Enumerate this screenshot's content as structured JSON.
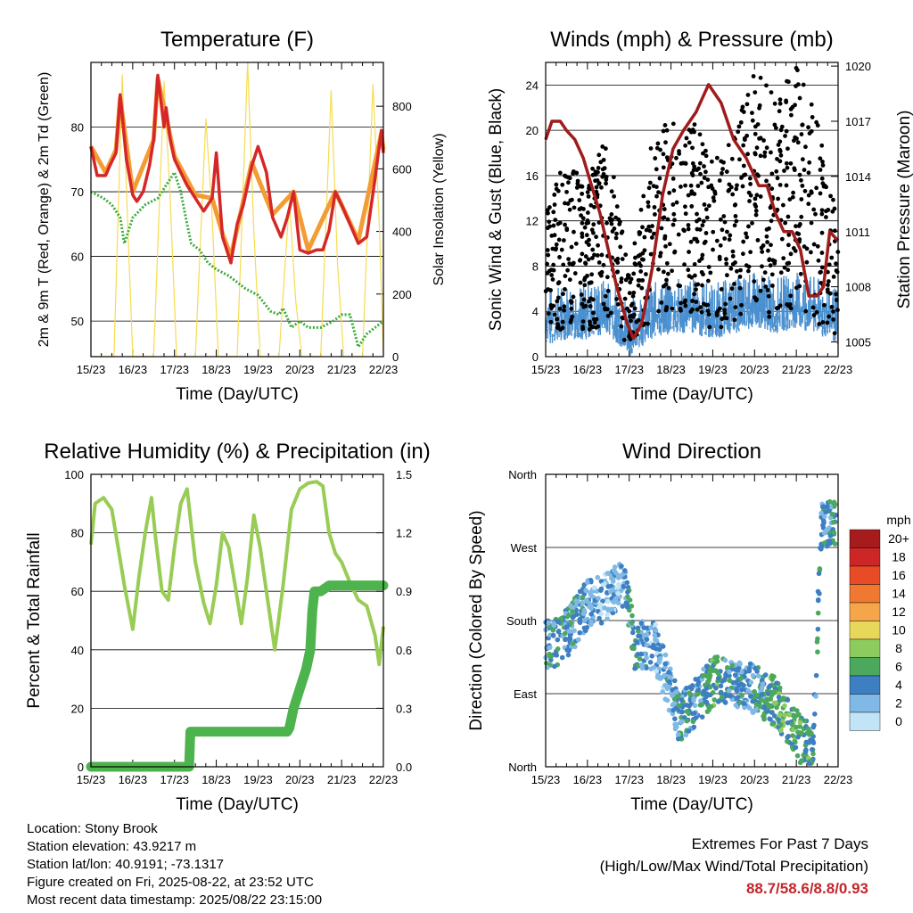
{
  "chart_data": [
    {
      "type": "line",
      "title": "Temperature (F)",
      "xlabel": "Time (Day/UTC)",
      "ylabel": "2m & 9m T (Red, Orange) & 2m Td (Green)",
      "y2label": "Solar Insolation (Yellow)",
      "x_ticks": [
        "15/23",
        "16/23",
        "17/23",
        "18/23",
        "19/23",
        "20/23",
        "21/23",
        "22/23"
      ],
      "xlim": [
        0,
        7
      ],
      "ylim": [
        44.5,
        90
      ],
      "y_ticks": [
        50,
        60,
        70,
        80
      ],
      "y2lim": [
        0,
        940
      ],
      "y2_ticks": [
        0,
        200,
        400,
        600,
        800
      ],
      "colors": {
        "t2m": "#d62728",
        "t9m": "#f39c34",
        "td": "#3cab3c",
        "solar": "#f7dc50"
      },
      "series": [
        {
          "name": "2m T",
          "axis": "left",
          "x": [
            0,
            0.15,
            0.35,
            0.45,
            0.6,
            0.7,
            0.85,
            1.0,
            1.1,
            1.25,
            1.4,
            1.5,
            1.6,
            1.75,
            1.8,
            1.9,
            2.0,
            2.15,
            2.3,
            2.5,
            2.7,
            2.9,
            3.0,
            3.15,
            3.35,
            3.5,
            3.65,
            3.85,
            4.0,
            4.2,
            4.35,
            4.55,
            4.7,
            4.85,
            5.0,
            5.2,
            5.4,
            5.55,
            5.7,
            5.85,
            6.0,
            6.2,
            6.4,
            6.6,
            6.8,
            6.95,
            7.0
          ],
          "y": [
            77,
            72.5,
            72.5,
            74,
            76,
            85,
            75,
            69.5,
            68.5,
            70,
            74,
            78,
            88,
            80,
            83,
            78,
            75,
            73,
            71,
            69,
            67,
            69,
            76,
            63,
            59,
            65,
            68,
            74,
            77,
            73,
            66,
            63,
            66,
            70,
            61,
            60.5,
            61,
            61,
            64,
            70,
            68,
            65,
            62,
            63,
            72,
            79.5,
            76
          ]
        },
        {
          "name": "9m T",
          "axis": "left",
          "x": [
            0,
            0.35,
            0.6,
            0.7,
            1.0,
            1.5,
            1.6,
            2.0,
            2.5,
            2.9,
            3.15,
            3.35,
            3.85,
            4.35,
            4.85,
            5.2,
            5.85,
            6.4,
            6.95,
            7.0
          ],
          "y": [
            77,
            73,
            76.5,
            84.5,
            70,
            78,
            87.5,
            75.5,
            69.5,
            69,
            63.5,
            60,
            74.5,
            66.5,
            70,
            61,
            70,
            62.5,
            79,
            76.5
          ]
        },
        {
          "name": "2m Td",
          "axis": "left",
          "x": [
            0,
            0.3,
            0.5,
            0.7,
            0.8,
            1.0,
            1.3,
            1.6,
            1.8,
            2.0,
            2.15,
            2.3,
            2.4,
            2.6,
            2.8,
            3.0,
            3.3,
            3.5,
            3.7,
            4.0,
            4.3,
            4.5,
            4.6,
            4.8,
            5.0,
            5.2,
            5.5,
            5.8,
            6.0,
            6.2,
            6.4,
            6.6,
            6.8,
            7.0
          ],
          "y": [
            70,
            69,
            68,
            66,
            62,
            66,
            68,
            69,
            71,
            73,
            70,
            65,
            62,
            61,
            59,
            58,
            57,
            56,
            55,
            54,
            51.5,
            51,
            52,
            49,
            50,
            49,
            49,
            50,
            51,
            51,
            46,
            48,
            49,
            50
          ]
        },
        {
          "name": "Solar Insolation",
          "axis": "right",
          "x": [
            0,
            0.55,
            0.75,
            0.9,
            1.0,
            1.5,
            1.75,
            1.9,
            2.05,
            2.5,
            2.75,
            2.9,
            3.05,
            3.5,
            3.75,
            3.9,
            4.05,
            4.5,
            4.75,
            4.9,
            5.05,
            5.5,
            5.75,
            5.9,
            6.05,
            6.5,
            6.75,
            6.9,
            7.0
          ],
          "y": [
            0,
            0,
            900,
            350,
            0,
            0,
            880,
            500,
            0,
            0,
            760,
            450,
            0,
            0,
            940,
            400,
            0,
            0,
            500,
            180,
            0,
            0,
            850,
            300,
            0,
            0,
            870,
            430,
            0
          ]
        }
      ]
    },
    {
      "type": "scatter",
      "title": "Winds (mph) & Pressure (mb)",
      "xlabel": "Time (Day/UTC)",
      "ylabel": "Sonic Wind & Gust (Blue, Black)",
      "y2label": "Station Pressure (Maroon)",
      "x_ticks": [
        "15/23",
        "16/23",
        "17/23",
        "18/23",
        "19/23",
        "20/23",
        "21/23",
        "22/23"
      ],
      "xlim": [
        0,
        7
      ],
      "ylim": [
        0,
        26
      ],
      "y_ticks": [
        0,
        4,
        8,
        12,
        16,
        20,
        24
      ],
      "y2lim": [
        1004.2,
        1020.2
      ],
      "y2_ticks": [
        1005,
        1008,
        1011,
        1014,
        1017,
        1020
      ],
      "colors": {
        "wind": "#4a90d0",
        "gust": "#000000",
        "pressure": "#9e1c1c"
      },
      "series": [
        {
          "name": "Sonic Wind",
          "axis": "left",
          "x": [
            0,
            0.5,
            1.0,
            1.5,
            2.0,
            2.5,
            3.0,
            3.5,
            4.0,
            4.5,
            5.0,
            5.5,
            6.0,
            6.5,
            7.0
          ],
          "y": [
            3.5,
            4,
            4,
            4.5,
            2.5,
            4,
            4.5,
            4.5,
            4,
            4.5,
            5,
            4.5,
            5,
            4.5,
            3.5
          ]
        },
        {
          "name": "Gust",
          "axis": "left",
          "x": [
            0,
            0.5,
            1.0,
            1.5,
            2.0,
            2.5,
            3.0,
            3.5,
            4.0,
            4.5,
            5.0,
            5.5,
            6.0,
            6.5,
            7.0
          ],
          "y": [
            8,
            10,
            9,
            12,
            4,
            11,
            12,
            12,
            10,
            11,
            15,
            13,
            15,
            12,
            7
          ]
        },
        {
          "name": "Station Pressure",
          "axis": "right",
          "x": [
            0,
            0.15,
            0.35,
            0.5,
            0.7,
            0.9,
            1.1,
            1.3,
            1.5,
            1.7,
            1.95,
            2.1,
            2.3,
            2.55,
            2.8,
            3.05,
            3.3,
            3.6,
            3.9,
            4.2,
            4.5,
            4.8,
            5.1,
            5.3,
            5.5,
            5.7,
            5.9,
            6.1,
            6.3,
            6.5,
            6.65,
            6.8,
            7.0
          ],
          "y": [
            1016,
            1017,
            1017,
            1016.5,
            1016,
            1015,
            1013.5,
            1012,
            1010,
            1008,
            1006,
            1005.2,
            1006,
            1009,
            1013,
            1015.5,
            1016.5,
            1017.5,
            1019,
            1018,
            1016,
            1015,
            1013.5,
            1013.5,
            1012,
            1011,
            1011,
            1010,
            1007.5,
            1007.5,
            1008,
            1011,
            1010.5
          ]
        }
      ]
    },
    {
      "type": "line",
      "title": "Relative Humidity (%) & Precipitation (in)",
      "xlabel": "Time (Day/UTC)",
      "ylabel": "Percent & Total Rainfall",
      "x_ticks": [
        "15/23",
        "16/23",
        "17/23",
        "18/23",
        "19/23",
        "20/23",
        "21/23",
        "22/23"
      ],
      "xlim": [
        0,
        7
      ],
      "ylim": [
        0,
        100
      ],
      "y_ticks": [
        0,
        20,
        40,
        60,
        80,
        100
      ],
      "y2lim": [
        0,
        1.5
      ],
      "y2_ticks": [
        "0.0",
        "0.3",
        "0.6",
        "0.9",
        "1.2",
        "1.5"
      ],
      "colors": {
        "rh": "#99cc55",
        "precip": "#4db34d"
      },
      "series": [
        {
          "name": "Relative Humidity",
          "axis": "left",
          "x": [
            0,
            0.1,
            0.3,
            0.5,
            0.65,
            0.8,
            1.0,
            1.15,
            1.3,
            1.45,
            1.55,
            1.7,
            1.85,
            2.0,
            2.15,
            2.3,
            2.5,
            2.7,
            2.85,
            3.0,
            3.15,
            3.3,
            3.45,
            3.6,
            3.75,
            3.9,
            4.05,
            4.2,
            4.4,
            4.6,
            4.8,
            5.0,
            5.2,
            5.4,
            5.55,
            5.7,
            5.85,
            6.0,
            6.2,
            6.4,
            6.6,
            6.8,
            6.9,
            7.0
          ],
          "y": [
            76,
            90,
            92,
            88,
            75,
            62,
            47,
            65,
            80,
            92,
            78,
            60,
            57,
            75,
            90,
            95,
            70,
            56,
            49,
            62,
            80,
            75,
            62,
            49,
            65,
            86,
            75,
            60,
            40,
            62,
            88,
            95,
            97,
            97.5,
            96,
            80,
            73,
            70,
            63,
            57,
            55,
            45,
            35,
            48
          ]
        },
        {
          "name": "Total Rainfall",
          "axis": "right",
          "x": [
            0,
            2.35,
            2.38,
            2.5,
            4.7,
            4.75,
            4.85,
            5.0,
            5.15,
            5.25,
            5.3,
            5.35,
            5.5,
            5.7,
            7.0
          ],
          "y": [
            0,
            0,
            0.18,
            0.18,
            0.18,
            0.2,
            0.3,
            0.4,
            0.5,
            0.6,
            0.8,
            0.9,
            0.9,
            0.93,
            0.93
          ]
        }
      ]
    },
    {
      "type": "scatter",
      "title": "Wind Direction",
      "xlabel": "Time (Day/UTC)",
      "ylabel": "Direction (Colored By Speed)",
      "x_ticks": [
        "15/23",
        "16/23",
        "17/23",
        "18/23",
        "19/23",
        "20/23",
        "21/23",
        "22/23"
      ],
      "xlim": [
        0,
        7
      ],
      "ylim": [
        0,
        360
      ],
      "y_ticks": [
        "North",
        "East",
        "South",
        "West",
        "North"
      ],
      "legend": {
        "title": "mph",
        "placement": "right",
        "labels": [
          "20+",
          "18",
          "16",
          "14",
          "12",
          "10",
          "8",
          "6",
          "4",
          "2",
          "0"
        ],
        "colors": [
          "#a61c1c",
          "#cc2626",
          "#e84c26",
          "#f07830",
          "#f5a54a",
          "#e8d85a",
          "#8ecb5e",
          "#4ba85c",
          "#3d7fc1",
          "#80b9e6",
          "#c2e4f7"
        ]
      },
      "series": [
        {
          "name": "Direction",
          "x": [
            0.2,
            0.6,
            1.0,
            1.5,
            1.9,
            2.1,
            2.6,
            3.2,
            3.6,
            4.1,
            4.5,
            5.0,
            5.5,
            6.0,
            6.4,
            6.6
          ],
          "y": [
            150,
            170,
            200,
            210,
            230,
            150,
            150,
            60,
            80,
            110,
            105,
            95,
            80,
            40,
            20,
            300
          ],
          "speed": [
            4,
            4,
            3,
            2,
            3,
            5,
            2,
            4,
            4,
            6,
            3,
            4,
            6,
            6,
            5,
            4
          ]
        }
      ]
    }
  ],
  "footer": {
    "location": "Location: Stony Brook",
    "elevation": "Station elevation: 43.9217 m",
    "latlon": "Station lat/lon: 40.9191; -73.1317",
    "created": "Figure created on Fri, 2025-08-22, at 23:52 UTC",
    "recent": "Most recent data timestamp: 2025/08/22 23:15:00",
    "extremes_title": "Extremes For Past 7 Days",
    "extremes_sub": "(High/Low/Max Wind/Total Precipitation)",
    "extremes_values": "88.7/58.6/8.8/0.93"
  }
}
